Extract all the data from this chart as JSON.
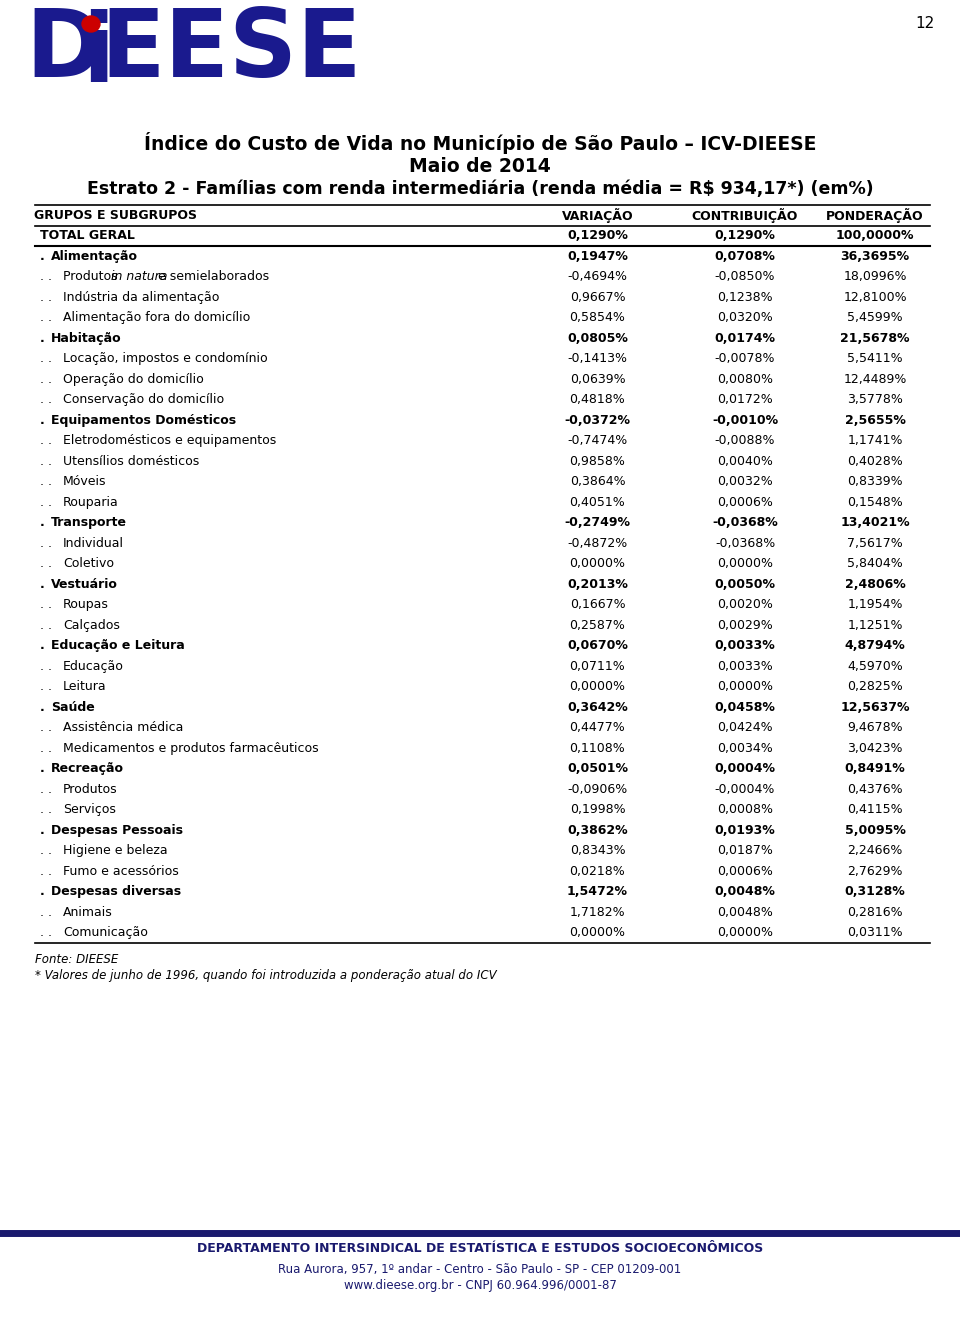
{
  "title1": "Índice do Custo de Vida no Município de São Paulo – ICV-DIEESE",
  "title2": "Maio de 2014",
  "title3": "Estrato 2 - Famílias com renda intermediária (renda média = R$ 934,17*) (em%)",
  "page_number": "12",
  "col_headers": [
    "GRUPOS E SUBGRUPOS",
    "VARIAÇÃO",
    "CONTRIBUIÇÃO",
    "PONDERAÇÃO"
  ],
  "footer1": "Fonte: DIEESE",
  "footer2": "* Valores de junho de 1996, quando foi introduzida a ponderação atual do ICV",
  "bottom_org": "DEPARTAMENTO INTERSINDICAL DE ESTATÍSTICA E ESTUDOS SOCIOECONÔMICOS",
  "bottom_addr": "Rua Aurora, 957, 1º andar - Centro - São Paulo - SP - CEP 01209-001",
  "bottom_web": "www.dieese.org.br - CNPJ 60.964.996/0001-87",
  "rows": [
    [
      "TOTAL GERAL",
      "0,1290%",
      "0,1290%",
      "100,0000%"
    ],
    [
      ". Alimentação",
      "0,1947%",
      "0,0708%",
      "36,3695%"
    ],
    [
      ". . Produtos in natura e semielaborados",
      "-0,4694%",
      "-0,0850%",
      "18,0996%"
    ],
    [
      ". . Indústria da alimentação",
      "0,9667%",
      "0,1238%",
      "12,8100%"
    ],
    [
      ". . Alimentação fora do domicílio",
      "0,5854%",
      "0,0320%",
      "5,4599%"
    ],
    [
      ". Habitação",
      "0,0805%",
      "0,0174%",
      "21,5678%"
    ],
    [
      ". . Locação, impostos e condomínio",
      "-0,1413%",
      "-0,0078%",
      "5,5411%"
    ],
    [
      ". . Operação do domicílio",
      "0,0639%",
      "0,0080%",
      "12,4489%"
    ],
    [
      ". . Conservação do domicílio",
      "0,4818%",
      "0,0172%",
      "3,5778%"
    ],
    [
      ". Equipamentos Domésticos",
      "-0,0372%",
      "-0,0010%",
      "2,5655%"
    ],
    [
      ". . Eletrodomésticos e equipamentos",
      "-0,7474%",
      "-0,0088%",
      "1,1741%"
    ],
    [
      ". . Utensílios domésticos",
      "0,9858%",
      "0,0040%",
      "0,4028%"
    ],
    [
      ". . Móveis",
      "0,3864%",
      "0,0032%",
      "0,8339%"
    ],
    [
      ". . Rouparia",
      "0,4051%",
      "0,0006%",
      "0,1548%"
    ],
    [
      ". Transporte",
      "-0,2749%",
      "-0,0368%",
      "13,4021%"
    ],
    [
      ". . Individual",
      "-0,4872%",
      "-0,0368%",
      "7,5617%"
    ],
    [
      ". . Coletivo",
      "0,0000%",
      "0,0000%",
      "5,8404%"
    ],
    [
      ". Vestuário",
      "0,2013%",
      "0,0050%",
      "2,4806%"
    ],
    [
      ". . Roupas",
      "0,1667%",
      "0,0020%",
      "1,1954%"
    ],
    [
      ". . Calçados",
      "0,2587%",
      "0,0029%",
      "1,1251%"
    ],
    [
      ". Educação e Leitura",
      "0,0670%",
      "0,0033%",
      "4,8794%"
    ],
    [
      ". . Educação",
      "0,0711%",
      "0,0033%",
      "4,5970%"
    ],
    [
      ". . Leitura",
      "0,0000%",
      "0,0000%",
      "0,2825%"
    ],
    [
      ". Saúde",
      "0,3642%",
      "0,0458%",
      "12,5637%"
    ],
    [
      ". . Assistência médica",
      "0,4477%",
      "0,0424%",
      "9,4678%"
    ],
    [
      ". . Medicamentos e produtos farmacêuticos",
      "0,1108%",
      "0,0034%",
      "3,0423%"
    ],
    [
      ". Recreação",
      "0,0501%",
      "0,0004%",
      "0,8491%"
    ],
    [
      ". . Produtos",
      "-0,0906%",
      "-0,0004%",
      "0,4376%"
    ],
    [
      ". . Serviços",
      "0,1998%",
      "0,0008%",
      "0,4115%"
    ],
    [
      ". Despesas Pessoais",
      "0,3862%",
      "0,0193%",
      "5,0095%"
    ],
    [
      ". . Higiene e beleza",
      "0,8343%",
      "0,0187%",
      "2,2466%"
    ],
    [
      ". . Fumo e acessórios",
      "0,0218%",
      "0,0006%",
      "2,7629%"
    ],
    [
      ". Despesas diversas",
      "1,5472%",
      "0,0048%",
      "0,3128%"
    ],
    [
      ". . Animais",
      "1,7182%",
      "0,0048%",
      "0,2816%"
    ],
    [
      ". . Comunicação",
      "0,0000%",
      "0,0000%",
      "0,0311%"
    ]
  ],
  "bold_rows": [
    0,
    1,
    5,
    9,
    14,
    17,
    20,
    23,
    26,
    29,
    32
  ],
  "bg_color": "#ffffff",
  "line_color": "#000000",
  "text_color": "#000000",
  "dark_blue": "#1a1a6e",
  "bottom_line_color": "#1a1a6e"
}
